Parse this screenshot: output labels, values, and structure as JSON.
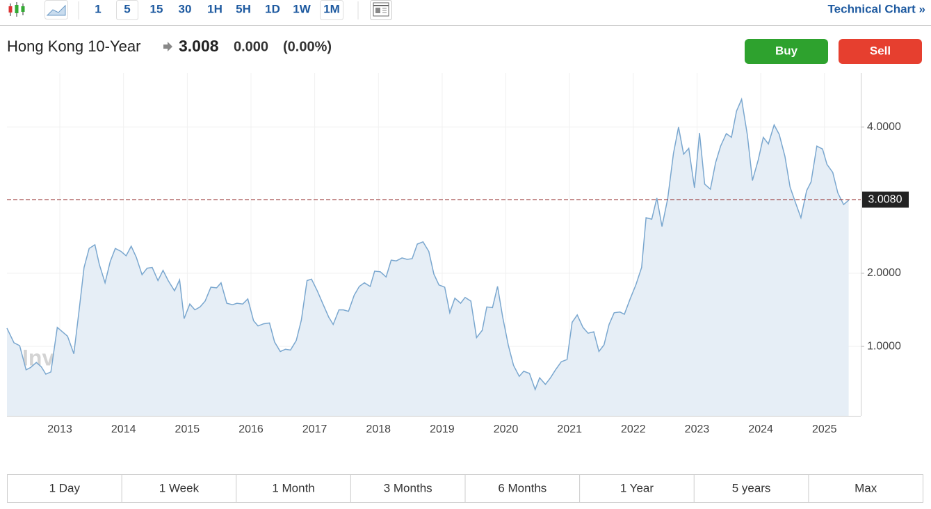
{
  "toolbar": {
    "intervals": [
      "1",
      "5",
      "15",
      "30",
      "1H",
      "5H",
      "1D",
      "1W",
      "1M"
    ],
    "link": "Technical Chart »"
  },
  "header": {
    "name": "Hong Kong 10-Year",
    "price": "3.008",
    "change": "0.000",
    "change_percent": "(0.00%)"
  },
  "buttons": {
    "buy": "Buy",
    "sell": "Sell"
  },
  "chart_data": {
    "type": "area",
    "watermark": "Investing.com",
    "color": "#7aa7cf",
    "fill": "#e6eef6",
    "grid": true,
    "xlim": [
      2012.17,
      2025.57
    ],
    "xticks": [
      2013,
      2014,
      2015,
      2016,
      2017,
      2018,
      2019,
      2020,
      2021,
      2022,
      2023,
      2024,
      2025
    ],
    "ylim": [
      0.05,
      4.74
    ],
    "yticks": [
      {
        "value": 1,
        "label": "1.0000"
      },
      {
        "value": 2,
        "label": "2.0000"
      },
      {
        "value": 4,
        "label": "4.0000"
      }
    ],
    "current_line": {
      "value": 3.008,
      "label": "3.0080",
      "color": "#8b1a1a"
    },
    "x": [
      2012.17,
      2012.28,
      2012.37,
      2012.47,
      2012.54,
      2012.63,
      2012.71,
      2012.78,
      2012.86,
      2012.96,
      2013.12,
      2013.22,
      2013.3,
      2013.38,
      2013.46,
      2013.55,
      2013.62,
      2013.71,
      2013.79,
      2013.87,
      2013.96,
      2014.04,
      2014.12,
      2014.2,
      2014.29,
      2014.37,
      2014.45,
      2014.54,
      2014.62,
      2014.7,
      2014.8,
      2014.88,
      2014.95,
      2015.04,
      2015.12,
      2015.2,
      2015.28,
      2015.37,
      2015.46,
      2015.53,
      2015.62,
      2015.71,
      2015.78,
      2015.87,
      2015.95,
      2016.04,
      2016.11,
      2016.2,
      2016.29,
      2016.37,
      2016.46,
      2016.54,
      2016.62,
      2016.71,
      2016.79,
      2016.88,
      2016.95,
      2017.04,
      2017.13,
      2017.22,
      2017.29,
      2017.38,
      2017.45,
      2017.53,
      2017.62,
      2017.7,
      2017.78,
      2017.87,
      2017.94,
      2018.03,
      2018.12,
      2018.2,
      2018.28,
      2018.37,
      2018.45,
      2018.53,
      2018.61,
      2018.7,
      2018.79,
      2018.87,
      2018.95,
      2019.04,
      2019.12,
      2019.2,
      2019.29,
      2019.36,
      2019.45,
      2019.54,
      2019.63,
      2019.7,
      2019.79,
      2019.87,
      2019.95,
      2020.04,
      2020.12,
      2020.21,
      2020.28,
      2020.37,
      2020.46,
      2020.53,
      2020.62,
      2020.7,
      2020.78,
      2020.87,
      2020.96,
      2021.04,
      2021.12,
      2021.21,
      2021.29,
      2021.38,
      2021.46,
      2021.54,
      2021.62,
      2021.7,
      2021.79,
      2021.86,
      2021.95,
      2022.04,
      2022.13,
      2022.2,
      2022.29,
      2022.37,
      2022.45,
      2022.54,
      2022.63,
      2022.71,
      2022.79,
      2022.87,
      2022.96,
      2023.04,
      2023.12,
      2023.21,
      2023.29,
      2023.37,
      2023.46,
      2023.54,
      2023.62,
      2023.7,
      2023.79,
      2023.87,
      2023.96,
      2024.04,
      2024.12,
      2024.21,
      2024.29,
      2024.38,
      2024.46,
      2024.54,
      2024.63,
      2024.72,
      2024.79,
      2024.88,
      2024.97,
      2025.04,
      2025.13,
      2025.21,
      2025.3,
      2025.38
    ],
    "values": [
      1.25,
      1.05,
      1.01,
      0.68,
      0.71,
      0.78,
      0.72,
      0.62,
      0.65,
      1.26,
      1.14,
      0.9,
      1.48,
      2.08,
      2.34,
      2.39,
      2.12,
      1.87,
      2.16,
      2.34,
      2.3,
      2.24,
      2.37,
      2.22,
      1.98,
      2.07,
      2.08,
      1.9,
      2.04,
      1.9,
      1.76,
      1.91,
      1.38,
      1.58,
      1.5,
      1.54,
      1.62,
      1.81,
      1.8,
      1.87,
      1.59,
      1.57,
      1.59,
      1.58,
      1.65,
      1.35,
      1.28,
      1.31,
      1.32,
      1.06,
      0.93,
      0.96,
      0.95,
      1.08,
      1.36,
      1.9,
      1.92,
      1.76,
      1.58,
      1.4,
      1.3,
      1.5,
      1.5,
      1.48,
      1.7,
      1.82,
      1.87,
      1.82,
      2.03,
      2.02,
      1.95,
      2.18,
      2.17,
      2.21,
      2.19,
      2.2,
      2.4,
      2.43,
      2.3,
      1.99,
      1.84,
      1.81,
      1.46,
      1.66,
      1.59,
      1.67,
      1.62,
      1.12,
      1.22,
      1.54,
      1.53,
      1.82,
      1.4,
      1.01,
      0.74,
      0.59,
      0.66,
      0.63,
      0.41,
      0.57,
      0.48,
      0.57,
      0.68,
      0.79,
      0.82,
      1.33,
      1.43,
      1.26,
      1.18,
      1.2,
      0.93,
      1.02,
      1.3,
      1.46,
      1.47,
      1.44,
      1.65,
      1.84,
      2.08,
      2.76,
      2.74,
      3.03,
      2.64,
      3.02,
      3.64,
      4.0,
      3.63,
      3.71,
      3.17,
      3.92,
      3.22,
      3.15,
      3.51,
      3.74,
      3.91,
      3.86,
      4.22,
      4.38,
      3.89,
      3.27,
      3.55,
      3.86,
      3.77,
      4.03,
      3.9,
      3.6,
      3.18,
      2.98,
      2.76,
      3.13,
      3.25,
      3.74,
      3.7,
      3.49,
      3.38,
      3.1,
      2.94,
      3.0
    ]
  },
  "ranges": [
    "1 Day",
    "1 Week",
    "1 Month",
    "3 Months",
    "6 Months",
    "1 Year",
    "5 years",
    "Max"
  ]
}
